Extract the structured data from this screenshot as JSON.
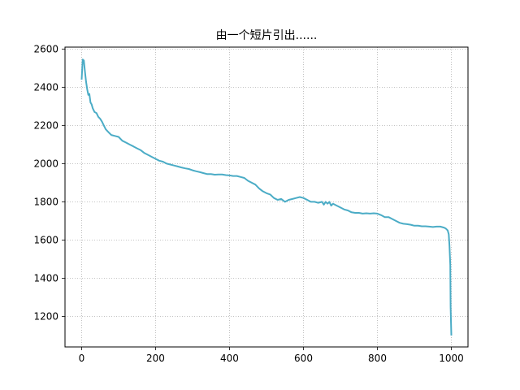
{
  "chart_data": {
    "type": "line",
    "title": "由一个短片引出......",
    "xlabel": "",
    "ylabel": "",
    "xlim": [
      -45,
      1045
    ],
    "ylim": [
      1040,
      2610
    ],
    "xticks": [
      0,
      200,
      400,
      600,
      800,
      1000
    ],
    "yticks": [
      1200,
      1400,
      1600,
      1800,
      2000,
      2200,
      2400,
      2600
    ],
    "grid": true,
    "grid_style": "dotted",
    "line_color": "#4bacc6",
    "series": [
      {
        "x": [
          0,
          3,
          6,
          9,
          12,
          15,
          18,
          21,
          24,
          27,
          30,
          35,
          40,
          45,
          50,
          55,
          60,
          65,
          70,
          75,
          80,
          90,
          100,
          110,
          120,
          130,
          140,
          150,
          160,
          170,
          180,
          190,
          200,
          210,
          220,
          230,
          240,
          250,
          260,
          270,
          280,
          290,
          300,
          310,
          320,
          330,
          340,
          350,
          360,
          370,
          380,
          390,
          400,
          410,
          420,
          430,
          440,
          450,
          460,
          470,
          480,
          490,
          500,
          510,
          520,
          530,
          540,
          550,
          560,
          570,
          580,
          590,
          600,
          610,
          620,
          630,
          640,
          650,
          655,
          660,
          665,
          670,
          675,
          680,
          690,
          700,
          710,
          720,
          730,
          740,
          750,
          760,
          770,
          780,
          790,
          800,
          810,
          820,
          830,
          840,
          850,
          860,
          870,
          880,
          890,
          900,
          910,
          920,
          930,
          940,
          950,
          960,
          970,
          980,
          985,
          990,
          993,
          995,
          997,
          998,
          1000
        ],
        "values": [
          2440,
          2545,
          2540,
          2480,
          2430,
          2390,
          2360,
          2365,
          2320,
          2310,
          2290,
          2270,
          2265,
          2245,
          2235,
          2220,
          2200,
          2180,
          2170,
          2160,
          2150,
          2145,
          2140,
          2120,
          2110,
          2100,
          2090,
          2080,
          2070,
          2055,
          2045,
          2035,
          2025,
          2015,
          2010,
          2000,
          1995,
          1990,
          1985,
          1980,
          1975,
          1972,
          1965,
          1960,
          1955,
          1950,
          1945,
          1945,
          1942,
          1943,
          1943,
          1940,
          1938,
          1935,
          1935,
          1930,
          1925,
          1910,
          1900,
          1890,
          1870,
          1855,
          1845,
          1838,
          1820,
          1810,
          1815,
          1800,
          1810,
          1815,
          1820,
          1825,
          1820,
          1810,
          1800,
          1800,
          1795,
          1800,
          1785,
          1800,
          1790,
          1800,
          1780,
          1790,
          1780,
          1770,
          1760,
          1755,
          1745,
          1742,
          1742,
          1738,
          1740,
          1738,
          1740,
          1738,
          1730,
          1720,
          1720,
          1710,
          1700,
          1690,
          1685,
          1683,
          1680,
          1675,
          1675,
          1672,
          1672,
          1670,
          1668,
          1670,
          1670,
          1665,
          1660,
          1650,
          1630,
          1570,
          1470,
          1250,
          1100
        ]
      }
    ]
  }
}
